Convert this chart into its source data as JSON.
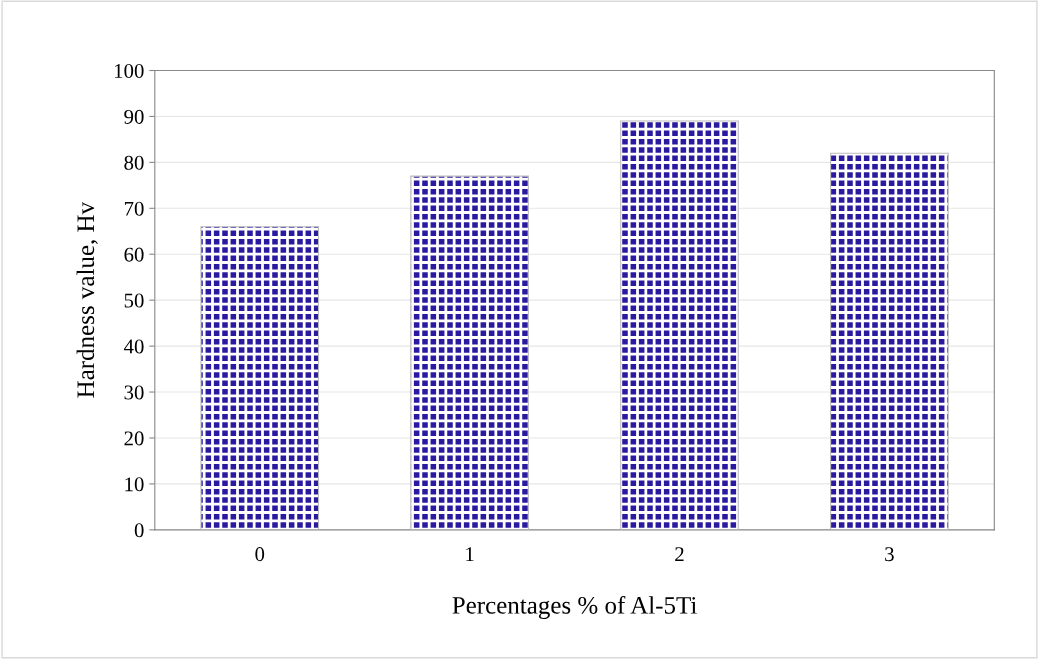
{
  "chart_data": {
    "type": "bar",
    "xlabel": "Percentages % of Al-5Ti",
    "ylabel": "Hardness value, Hv",
    "categories": [
      "0",
      "1",
      "2",
      "3"
    ],
    "values": [
      66,
      77,
      89,
      82
    ],
    "color": "#2a1aa0",
    "ylim": [
      0,
      100
    ],
    "yticks": [
      0,
      10,
      20,
      30,
      40,
      50,
      60,
      70,
      80,
      90,
      100
    ],
    "grid": "y"
  }
}
